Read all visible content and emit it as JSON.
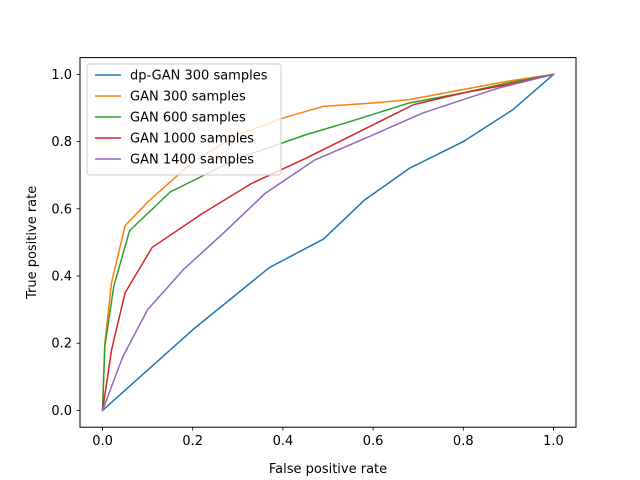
{
  "chart_data": {
    "type": "line",
    "title": "",
    "xlabel": "False positive rate",
    "ylabel": "True positive rate",
    "xlim": [
      -0.05,
      1.05
    ],
    "ylim": [
      -0.05,
      1.05
    ],
    "xticks": [
      0.0,
      0.2,
      0.4,
      0.6,
      0.8,
      1.0
    ],
    "yticks": [
      0.0,
      0.2,
      0.4,
      0.6,
      0.8,
      1.0
    ],
    "xtick_labels": [
      "0.0",
      "0.2",
      "0.4",
      "0.6",
      "0.8",
      "1.0"
    ],
    "ytick_labels": [
      "0.0",
      "0.2",
      "0.4",
      "0.6",
      "0.8",
      "1.0"
    ],
    "legend_position": "top-left",
    "series": [
      {
        "name": "dp-GAN 300 samples",
        "color": "#1f77b4",
        "x": [
          0.0,
          0.2,
          0.37,
          0.49,
          0.58,
          0.68,
          0.8,
          0.91,
          1.0
        ],
        "y": [
          0.0,
          0.24,
          0.425,
          0.51,
          0.625,
          0.72,
          0.8,
          0.895,
          1.0
        ]
      },
      {
        "name": "GAN 300 samples",
        "color": "#ff7f0e",
        "x": [
          0.0,
          0.005,
          0.02,
          0.05,
          0.1,
          0.2,
          0.3,
          0.4,
          0.49,
          0.6,
          0.68,
          0.8,
          0.9,
          1.0
        ],
        "y": [
          0.0,
          0.2,
          0.38,
          0.55,
          0.62,
          0.74,
          0.82,
          0.87,
          0.905,
          0.915,
          0.925,
          0.955,
          0.98,
          1.0
        ]
      },
      {
        "name": "GAN 600 samples",
        "color": "#2ca02c",
        "x": [
          0.0,
          0.005,
          0.025,
          0.06,
          0.15,
          0.3,
          0.45,
          0.55,
          0.68,
          0.8,
          0.9,
          1.0
        ],
        "y": [
          0.0,
          0.19,
          0.37,
          0.535,
          0.65,
          0.75,
          0.82,
          0.86,
          0.915,
          0.945,
          0.975,
          1.0
        ]
      },
      {
        "name": "GAN 1000 samples",
        "color": "#d62728",
        "x": [
          0.0,
          0.02,
          0.05,
          0.11,
          0.22,
          0.33,
          0.45,
          0.57,
          0.69,
          0.8,
          0.9,
          1.0
        ],
        "y": [
          0.0,
          0.18,
          0.35,
          0.485,
          0.585,
          0.675,
          0.75,
          0.83,
          0.91,
          0.945,
          0.97,
          1.0
        ]
      },
      {
        "name": "GAN 1400 samples",
        "color": "#9467bd",
        "x": [
          0.0,
          0.045,
          0.1,
          0.18,
          0.27,
          0.36,
          0.47,
          0.6,
          0.71,
          0.8,
          0.88,
          1.0
        ],
        "y": [
          0.0,
          0.16,
          0.3,
          0.42,
          0.53,
          0.645,
          0.745,
          0.82,
          0.885,
          0.925,
          0.96,
          1.0
        ]
      }
    ]
  }
}
